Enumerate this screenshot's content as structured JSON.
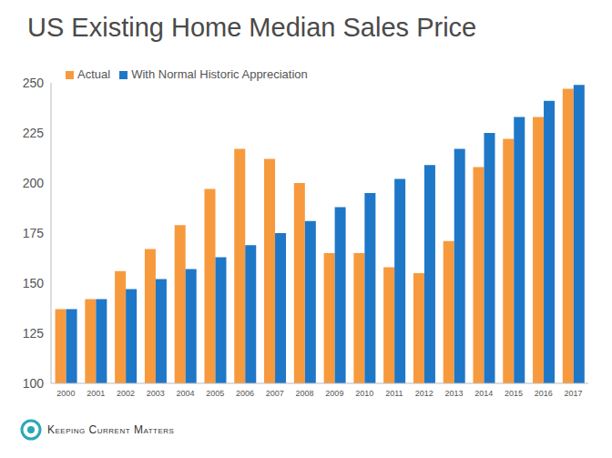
{
  "chart_data": {
    "type": "bar",
    "title": "US Existing Home Median Sales Price",
    "categories": [
      "2000",
      "2001",
      "2002",
      "2003",
      "2004",
      "2005",
      "2006",
      "2007",
      "2008",
      "2009",
      "2010",
      "2011",
      "2012",
      "2013",
      "2014",
      "2015",
      "2016",
      "2017"
    ],
    "series": [
      {
        "name": "Actual",
        "color": "#f79a3d",
        "values": [
          137,
          142,
          156,
          167,
          179,
          197,
          217,
          212,
          200,
          165,
          165,
          158,
          155,
          171,
          208,
          222,
          233,
          247
        ]
      },
      {
        "name": "With Normal Historic Appreciation",
        "color": "#1f77c8",
        "values": [
          137,
          142,
          147,
          152,
          157,
          163,
          169,
          175,
          181,
          188,
          195,
          202,
          209,
          217,
          225,
          233,
          241,
          249
        ]
      }
    ],
    "ylim": [
      100,
      250
    ],
    "yticks": [
      100,
      125,
      150,
      175,
      200,
      225,
      250
    ],
    "grid": false,
    "legend": "upper left",
    "annotations": [
      "Keeping Current Matters"
    ]
  }
}
